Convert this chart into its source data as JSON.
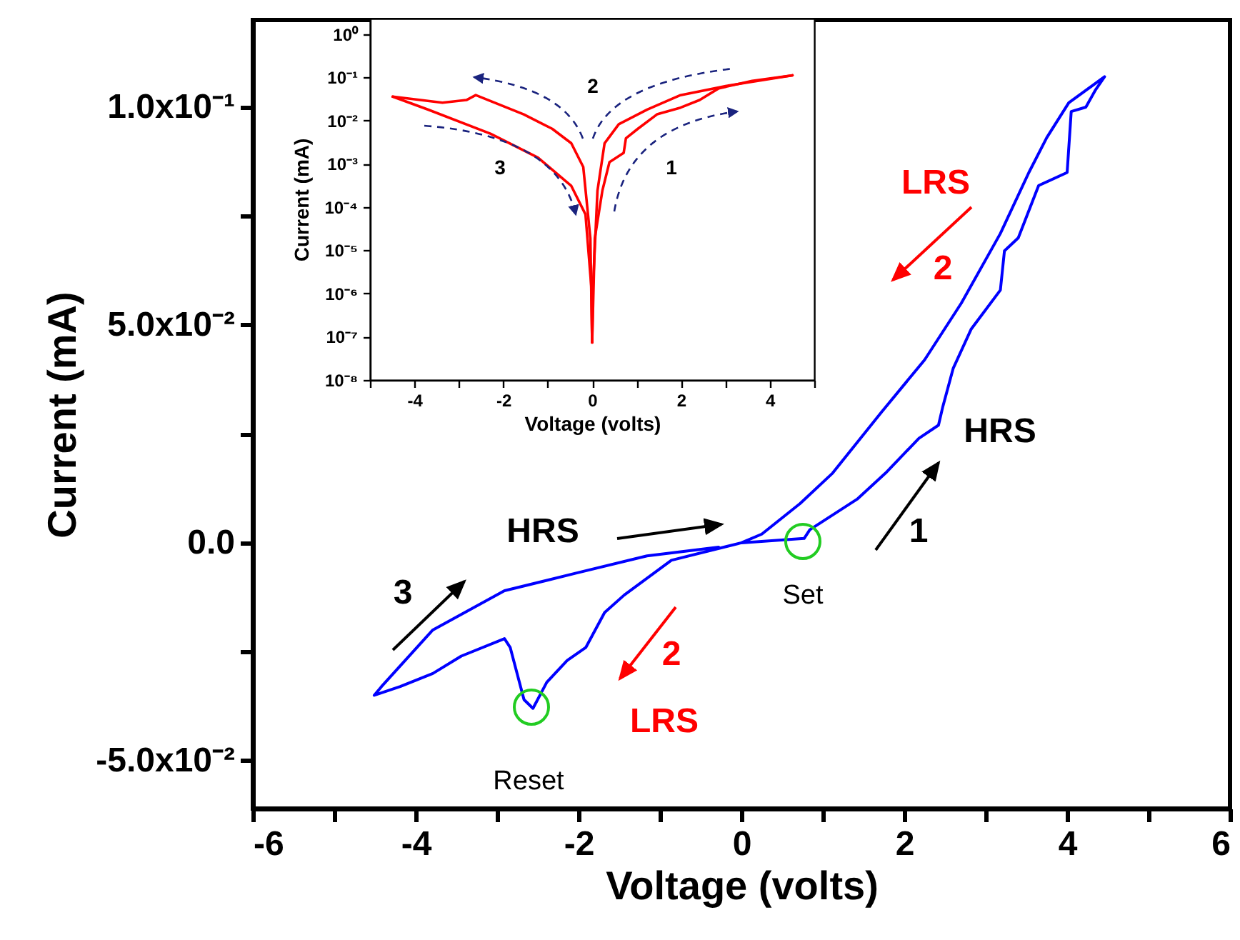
{
  "chart_data": [
    {
      "type": "line",
      "xlabel": "Voltage (volts)",
      "ylabel": "Current (mA)",
      "xlim": [
        -6,
        6
      ],
      "ylim": [
        -0.061,
        0.12
      ],
      "xticks": [
        -6,
        {
          "value": -5,
          "label": null
        },
        -4,
        {
          "value": -3,
          "label": null
        },
        -2,
        {
          "value": -1,
          "label": null
        },
        0,
        {
          "value": 1,
          "label": null
        },
        2,
        {
          "value": 3,
          "label": null
        },
        4,
        {
          "value": 5,
          "label": null
        },
        6
      ],
      "yticks": [
        {
          "value": -0.05,
          "label": "-5.0x10⁻²"
        },
        {
          "value": -0.025,
          "label": null
        },
        {
          "value": 0,
          "label": "0.0"
        },
        {
          "value": 0.025,
          "label": null
        },
        {
          "value": 0.05,
          "label": "5.0x10⁻²"
        },
        {
          "value": 0.075,
          "label": null
        },
        {
          "value": 0.1,
          "label": "1.0x10⁻¹"
        }
      ],
      "series": [
        {
          "color": "#0000ff",
          "x": [
            0,
            0.77,
            0.84,
            1.42,
            1.77,
            2.18,
            2.42,
            2.47,
            2.6,
            2.82,
            3.18,
            3.23,
            3.4,
            3.65,
            4.0,
            4.05,
            4.23,
            4.35,
            4.46,
            4.02,
            3.75,
            3.53,
            3.18,
            2.7,
            2.25,
            1.72,
            1.12,
            0.72,
            0.25,
            0,
            -0.86,
            -1.44,
            -1.68,
            -1.91,
            -2.14,
            -2.39,
            -2.56,
            -2.67,
            -2.84,
            -2.91,
            -3.44,
            -3.79,
            -4.19,
            -4.51,
            -4.42,
            -3.79,
            -2.91,
            -2.04,
            -1.16,
            -0.28
          ],
          "values": [
            0,
            0.001,
            0.003,
            0.01,
            0.016,
            0.024,
            0.027,
            0.031,
            0.04,
            0.049,
            0.058,
            0.067,
            0.07,
            0.082,
            0.085,
            0.099,
            0.1,
            0.104,
            0.107,
            0.101,
            0.093,
            0.085,
            0.071,
            0.055,
            0.042,
            0.03,
            0.016,
            0.009,
            0.002,
            0,
            -0.004,
            -0.012,
            -0.016,
            -0.024,
            -0.027,
            -0.032,
            -0.038,
            -0.036,
            -0.024,
            -0.022,
            -0.026,
            -0.03,
            -0.033,
            -0.035,
            -0.033,
            -0.02,
            -0.011,
            -0.007,
            -0.003,
            -0.001
          ]
        }
      ],
      "annotations": [
        "LRS",
        "2",
        "HRS",
        "1",
        "Set",
        "HRS",
        "3",
        "2",
        "LRS",
        "Reset"
      ]
    },
    {
      "type": "line",
      "log": "y",
      "xlabel": "Voltage (volts)",
      "ylabel": "Current (mA)",
      "xlim": [
        -5,
        5
      ],
      "ylim": [
        1e-08,
        2.3
      ],
      "xticks": [
        {
          "value": -5,
          "label": null
        },
        -4,
        {
          "value": -3,
          "label": null
        },
        -2,
        {
          "value": -1,
          "label": null
        },
        0,
        {
          "value": 1,
          "label": null
        },
        2,
        {
          "value": 3,
          "label": null
        },
        4,
        {
          "value": 5,
          "label": null
        }
      ],
      "yticks": [
        {
          "value": 1e-08,
          "label": "10⁻⁸"
        },
        {
          "value": 1e-07,
          "label": "10⁻⁷"
        },
        {
          "value": 1e-06,
          "label": "10⁻⁶"
        },
        {
          "value": 1e-05,
          "label": "10⁻⁵"
        },
        {
          "value": 0.0001,
          "label": "10⁻⁴"
        },
        {
          "value": 0.001,
          "label": "10⁻³"
        },
        {
          "value": 0.01,
          "label": "10⁻²"
        },
        {
          "value": 0.1,
          "label": "10⁻¹"
        },
        {
          "value": 1,
          "label": "10⁰"
        }
      ],
      "series": [
        {
          "color": "#ff0000",
          "x": [
            0,
            0.06,
            0.23,
            0.39,
            0.71,
            0.76,
            1.03,
            1.46,
            1.99,
            2.42,
            2.85,
            3.6,
            4.51
          ],
          "values": [
            7.4e-08,
            1.9e-05,
            0.00024,
            0.0011,
            0.0018,
            0.0039,
            0.0065,
            0.014,
            0.02,
            0.03,
            0.056,
            0.083,
            0.112
          ]
        },
        {
          "color": "#ff0000",
          "x": [
            4.51,
            3.07,
            1.99,
            1.24,
            0.6,
            0.28,
            0.12,
            0.02,
            0
          ],
          "values": [
            0.112,
            0.065,
            0.039,
            0.018,
            0.0083,
            0.003,
            0.00024,
            1.5e-06,
            7.4e-08
          ]
        },
        {
          "color": "#ff0000",
          "x": [
            0,
            -0.04,
            -0.2,
            -0.47,
            -0.9,
            -1.54,
            -2.19,
            -2.62,
            -2.83,
            -3.37,
            -4.49
          ],
          "values": [
            7.4e-08,
            1.9e-05,
            0.00085,
            0.003,
            0.0065,
            0.014,
            0.026,
            0.039,
            0.03,
            0.026,
            0.036
          ]
        },
        {
          "color": "#ff0000",
          "x": [
            -4.49,
            -3.69,
            -2.29,
            -1.22,
            -0.47,
            -0.15,
            -0.02,
            0
          ],
          "values": [
            0.036,
            0.018,
            0.005,
            0.0014,
            0.00031,
            6.8e-05,
            1.5e-06,
            7.4e-08
          ]
        }
      ],
      "annotations": [
        "2",
        "1",
        "3"
      ]
    }
  ]
}
